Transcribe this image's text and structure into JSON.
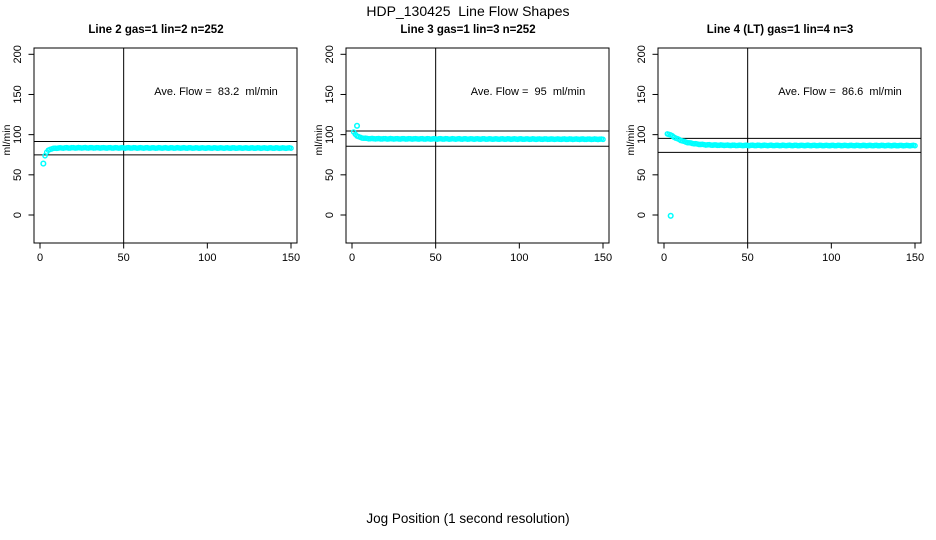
{
  "page": {
    "title": "HDP_130425  Line Flow Shapes",
    "xlabel": "Jog Position (1 second resolution)"
  },
  "colors": {
    "points": "#00ffff",
    "axis": "#000000",
    "background": "#ffffff"
  },
  "chart_data": [
    {
      "type": "scatter",
      "title": "Line 2 gas=1 lin=2 n=252",
      "annotation": "Ave. Flow =  83.2  ml/min",
      "ave_flow_ml_min": 83.2,
      "ylabel": "ml/min",
      "xlim": [
        0,
        150
      ],
      "ylim": [
        0,
        200
      ],
      "xticks": [
        0,
        50,
        100,
        150
      ],
      "yticks": [
        0,
        50,
        100,
        150,
        200
      ],
      "grid": false,
      "vline_x": 50,
      "hlines": [
        74.9,
        91.5
      ],
      "marker": "open-circle",
      "outliers": [
        [
          2,
          64
        ]
      ],
      "curve_keypoints": [
        [
          3,
          74
        ],
        [
          4,
          78
        ],
        [
          5,
          80.5
        ],
        [
          6,
          81.8
        ],
        [
          7,
          82.4
        ],
        [
          8,
          82.8
        ],
        [
          10,
          83.2
        ],
        [
          12,
          83.4
        ],
        [
          15,
          83.5
        ],
        [
          20,
          83.6
        ],
        [
          30,
          83.6
        ],
        [
          50,
          83.5
        ],
        [
          100,
          83.4
        ],
        [
          150,
          83.3
        ]
      ]
    },
    {
      "type": "scatter",
      "title": "Line 3 gas=1 lin=3 n=252",
      "annotation": "Ave. Flow =  95  ml/min",
      "ave_flow_ml_min": 95,
      "ylabel": "ml/min",
      "xlim": [
        0,
        150
      ],
      "ylim": [
        0,
        200
      ],
      "xticks": [
        0,
        50,
        100,
        150
      ],
      "yticks": [
        0,
        50,
        100,
        150,
        200
      ],
      "grid": false,
      "vline_x": 50,
      "hlines": [
        85.5,
        104.5
      ],
      "marker": "open-circle",
      "outliers": [
        [
          3,
          111
        ]
      ],
      "curve_keypoints": [
        [
          1,
          103
        ],
        [
          2,
          100.5
        ],
        [
          3,
          98.5
        ],
        [
          4,
          97.3
        ],
        [
          5,
          96.5
        ],
        [
          6,
          96
        ],
        [
          8,
          95.4
        ],
        [
          10,
          95.1
        ],
        [
          15,
          94.9
        ],
        [
          20,
          94.8
        ],
        [
          50,
          94.7
        ],
        [
          100,
          94.5
        ],
        [
          150,
          94.3
        ]
      ]
    },
    {
      "type": "scatter",
      "title": "Line 4 (LT) gas=1 lin=4 n=3",
      "annotation": "Ave. Flow =  86.6  ml/min",
      "ave_flow_ml_min": 86.6,
      "ylabel": "ml/min",
      "xlim": [
        0,
        150
      ],
      "ylim": [
        0,
        200
      ],
      "xticks": [
        0,
        50,
        100,
        150
      ],
      "yticks": [
        0,
        50,
        100,
        150,
        200
      ],
      "grid": false,
      "vline_x": 50,
      "hlines": [
        77.9,
        95.3
      ],
      "marker": "open-circle",
      "outliers": [
        [
          4,
          -1
        ]
      ],
      "curve_keypoints": [
        [
          2,
          101
        ],
        [
          3,
          100.5
        ],
        [
          4,
          99.5
        ],
        [
          5,
          98.3
        ],
        [
          6,
          97
        ],
        [
          8,
          94.8
        ],
        [
          10,
          93
        ],
        [
          12,
          91.4
        ],
        [
          15,
          89.8
        ],
        [
          20,
          88.2
        ],
        [
          25,
          87.4
        ],
        [
          30,
          87
        ],
        [
          40,
          86.7
        ],
        [
          50,
          86.6
        ],
        [
          100,
          86.5
        ],
        [
          150,
          86.4
        ]
      ]
    }
  ]
}
